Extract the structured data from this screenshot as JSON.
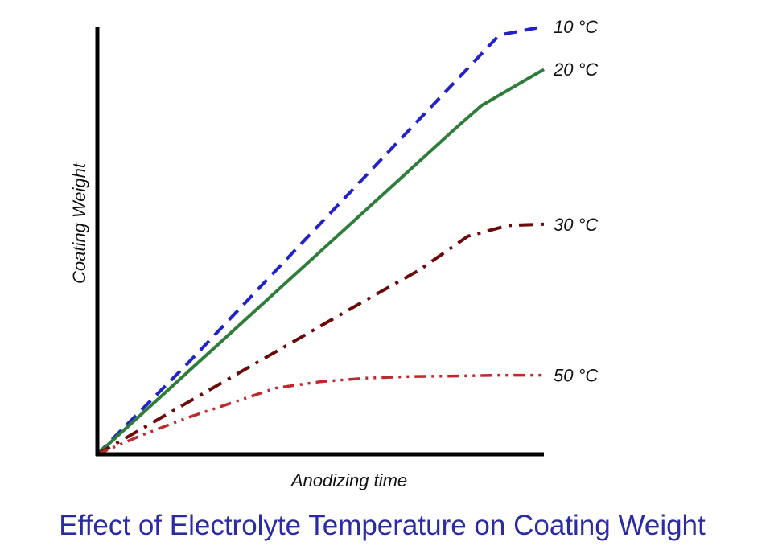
{
  "chart_data": {
    "type": "line",
    "title": "Effect of Electrolyte Temperature on Coating Weight",
    "xlabel": "Anodizing time",
    "ylabel": "Coating Weight",
    "xlim": [
      0,
      100
    ],
    "ylim": [
      0,
      100
    ],
    "x_ticks": false,
    "y_ticks": false,
    "grid": false,
    "legend": "inline labels at line ends",
    "title_color": "#2b2ba3",
    "series": [
      {
        "name": "10 °C",
        "color": "#2222cc",
        "dash": "dashed",
        "width": 4,
        "points": [
          [
            0,
            0
          ],
          [
            10,
            10.5
          ],
          [
            20,
            21
          ],
          [
            30,
            32
          ],
          [
            40,
            43
          ],
          [
            50,
            54
          ],
          [
            60,
            65
          ],
          [
            70,
            76
          ],
          [
            80,
            87
          ],
          [
            90,
            98
          ],
          [
            100,
            100
          ]
        ]
      },
      {
        "name": "20 °C",
        "color": "#2e7d3a",
        "dash": "solid",
        "width": 4,
        "points": [
          [
            0,
            0
          ],
          [
            10,
            9.5
          ],
          [
            20,
            19
          ],
          [
            30,
            28.5
          ],
          [
            40,
            38
          ],
          [
            50,
            47.5
          ],
          [
            60,
            57
          ],
          [
            70,
            66.5
          ],
          [
            80,
            76
          ],
          [
            86,
            81.5
          ],
          [
            100,
            90
          ]
        ]
      },
      {
        "name": "30 °C",
        "color": "#6b0a0a",
        "dash": "dashdot",
        "width": 4,
        "points": [
          [
            0,
            0
          ],
          [
            10,
            6
          ],
          [
            20,
            12
          ],
          [
            30,
            18
          ],
          [
            40,
            24
          ],
          [
            50,
            30
          ],
          [
            60,
            36
          ],
          [
            72,
            43
          ],
          [
            83,
            51
          ],
          [
            92,
            53.5
          ],
          [
            100,
            53.8
          ]
        ]
      },
      {
        "name": "50 °C",
        "color": "#c0282d",
        "dash": "dashdotdot",
        "width": 3.5,
        "points": [
          [
            0,
            0
          ],
          [
            10,
            4.5
          ],
          [
            20,
            8.5
          ],
          [
            30,
            12
          ],
          [
            40,
            15.5
          ],
          [
            50,
            17
          ],
          [
            60,
            17.8
          ],
          [
            70,
            18.2
          ],
          [
            80,
            18.3
          ],
          [
            90,
            18.5
          ],
          [
            100,
            18.5
          ]
        ]
      }
    ]
  }
}
